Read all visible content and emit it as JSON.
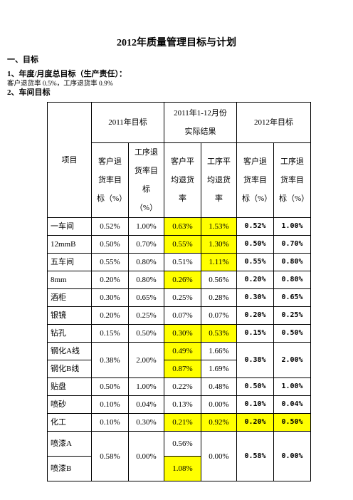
{
  "header": {
    "title": "2012年质量管理目标与计划"
  },
  "sections": {
    "goal": "一、目标",
    "annual": "1、年度/月度总目标（生产责任）：",
    "annual_text": "客户退货率 0.5%，工序退货率 0.9%",
    "workshop": "2、车间目标"
  },
  "table": {
    "head": {
      "item": "项目",
      "target2011": "2011年目标",
      "actual_line1": "2011年1-12月份",
      "actual_line2": "实际结果",
      "target2012": "2012年目标",
      "sub": [
        "客户退货率目标（%）",
        "工序退货率目标（%）",
        "客户平均退货率",
        "工序平均退货率",
        "客户退货率目标（%）",
        "工序退货率目标（%）"
      ]
    },
    "rows": [
      [
        "一车间",
        "0.52%",
        "1.00%",
        "0.63%",
        "1.53%",
        "0.52%",
        "1.00%"
      ],
      [
        "12mmB",
        "0.50%",
        "0.70%",
        "0.55%",
        "1.30%",
        "0.50%",
        "0.70%"
      ],
      [
        "五车间",
        "0.55%",
        "0.80%",
        "0.51%",
        "1.11%",
        "0.55%",
        "0.80%"
      ],
      [
        "8mm",
        "0.20%",
        "0.80%",
        "0.26%",
        "0.56%",
        "0.20%",
        "0.80%"
      ],
      [
        "酒柜",
        "0.30%",
        "0.65%",
        "0.25%",
        "0.28%",
        "0.30%",
        "0.65%"
      ],
      [
        "银镜",
        "0.20%",
        "0.25%",
        "0.07%",
        "0.07%",
        "0.20%",
        "0.25%"
      ],
      [
        "钻孔",
        "0.15%",
        "0.50%",
        "0.30%",
        "0.53%",
        "0.15%",
        "0.50%"
      ],
      [
        "钢化A线",
        "0.38%",
        "2.00%",
        "0.49%",
        "1.66%",
        "0.38%",
        "2.00%"
      ],
      [
        "钢化B线",
        "0.87%",
        "1.69%"
      ],
      [
        "贴盘",
        "0.50%",
        "1.00%",
        "0.22%",
        "0.48%",
        "0.50%",
        "1.00%"
      ],
      [
        "喷砂",
        "0.10%",
        "0.04%",
        "0.13%",
        "0.00%",
        "0.10%",
        "0.04%"
      ],
      [
        "化工",
        "0.10%",
        "0.30%",
        "0.21%",
        "0.92%",
        "0.20%",
        "0.50%"
      ],
      [
        "喷漆A",
        "0.58%",
        "0.00%",
        "0.56%",
        "0.00%",
        "0.58%",
        "0.00%"
      ],
      [
        "喷漆B",
        "1.08%"
      ]
    ]
  }
}
